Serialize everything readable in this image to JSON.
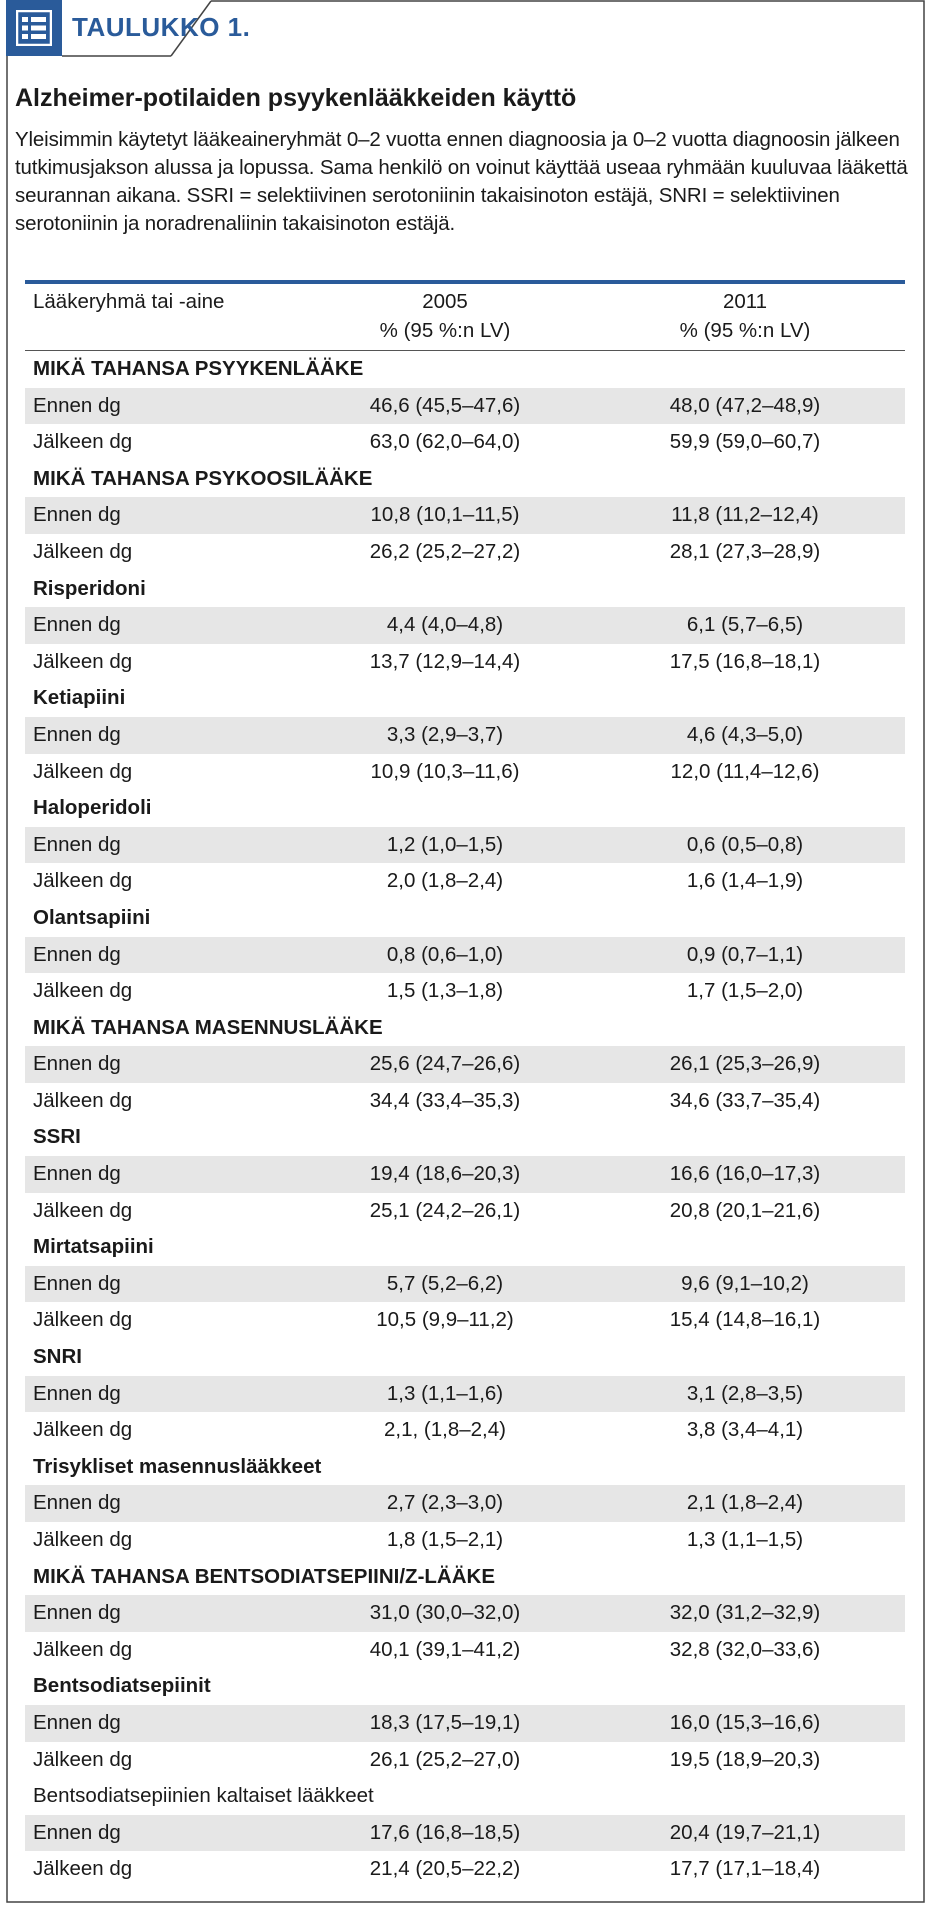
{
  "tag": {
    "icon": "table-list-icon",
    "label": "TAULUKKO 1."
  },
  "title": "Alzheimer-potilaiden psyykenlääkkeiden käyttö",
  "description": "Yleisimmin käytetyt lääkeaineryhmät 0–2 vuotta ennen diagnoosia ja 0–2 vuotta diagnoosin jälkeen tutkimusjakson alussa ja lopussa. Sama henkilö on voinut käyttää useaa ryhmään kuuluvaa lääkettä seurannan aikana. SSRI = selektiivinen serotoniinin takaisinoton estäjä, SNRI = selektiivinen serotoniinin ja noradrenaliinin takaisinoton estäjä.",
  "colors": {
    "accent": "#2a5b9a",
    "shade": "#e6e6e6"
  },
  "table": {
    "header": {
      "col1": "Lääkeryhmä tai -aine",
      "col2_year": "2005",
      "col2_unit": "% (95 %:n LV)",
      "col3_year": "2011",
      "col3_unit": "% (95 %:n LV)"
    },
    "rows": [
      {
        "label": "MIKÄ TAHANSA PSYYKENLÄÄKE",
        "v2005": "",
        "v2011": "",
        "type": "group",
        "shade": false
      },
      {
        "label": "Ennen dg",
        "v2005": "46,6 (45,5–47,6)",
        "v2011": "48,0 (47,2–48,9)",
        "type": "data",
        "shade": true
      },
      {
        "label": "Jälkeen dg",
        "v2005": "63,0 (62,0–64,0)",
        "v2011": "59,9 (59,0–60,7)",
        "type": "data",
        "shade": false
      },
      {
        "label": "MIKÄ TAHANSA PSYKOOSILÄÄKE",
        "v2005": "",
        "v2011": "",
        "type": "group",
        "shade": false
      },
      {
        "label": "Ennen dg",
        "v2005": "10,8 (10,1–11,5)",
        "v2011": "11,8 (11,2–12,4)",
        "type": "data",
        "shade": true
      },
      {
        "label": "Jälkeen dg",
        "v2005": "26,2 (25,2–27,2)",
        "v2011": "28,1 (27,3–28,9)",
        "type": "data",
        "shade": false
      },
      {
        "label": "Risperidoni",
        "v2005": "",
        "v2011": "",
        "type": "group",
        "shade": false
      },
      {
        "label": "Ennen dg",
        "v2005": "4,4 (4,0–4,8)",
        "v2011": "6,1 (5,7–6,5)",
        "type": "data",
        "shade": true
      },
      {
        "label": "Jälkeen dg",
        "v2005": "13,7 (12,9–14,4)",
        "v2011": "17,5 (16,8–18,1)",
        "type": "data",
        "shade": false
      },
      {
        "label": "Ketiapiini",
        "v2005": "",
        "v2011": "",
        "type": "group",
        "shade": false
      },
      {
        "label": "Ennen dg",
        "v2005": "3,3 (2,9–3,7)",
        "v2011": "4,6 (4,3–5,0)",
        "type": "data",
        "shade": true
      },
      {
        "label": "Jälkeen dg",
        "v2005": "10,9 (10,3–11,6)",
        "v2011": "12,0 (11,4–12,6)",
        "type": "data",
        "shade": false
      },
      {
        "label": "Haloperidoli",
        "v2005": "",
        "v2011": "",
        "type": "group",
        "shade": false
      },
      {
        "label": "Ennen dg",
        "v2005": "1,2 (1,0–1,5)",
        "v2011": "0,6 (0,5–0,8)",
        "type": "data",
        "shade": true
      },
      {
        "label": "Jälkeen dg",
        "v2005": "2,0 (1,8–2,4)",
        "v2011": "1,6 (1,4–1,9)",
        "type": "data",
        "shade": false
      },
      {
        "label": "Olantsapiini",
        "v2005": "",
        "v2011": "",
        "type": "group",
        "shade": false
      },
      {
        "label": "Ennen dg",
        "v2005": "0,8 (0,6–1,0)",
        "v2011": "0,9 (0,7–1,1)",
        "type": "data",
        "shade": true
      },
      {
        "label": "Jälkeen dg",
        "v2005": "1,5 (1,3–1,8)",
        "v2011": "1,7 (1,5–2,0)",
        "type": "data",
        "shade": false
      },
      {
        "label": "MIKÄ TAHANSA MASENNUSLÄÄKE",
        "v2005": "",
        "v2011": "",
        "type": "group",
        "shade": false
      },
      {
        "label": "Ennen dg",
        "v2005": "25,6 (24,7–26,6)",
        "v2011": "26,1 (25,3–26,9)",
        "type": "data",
        "shade": true
      },
      {
        "label": "Jälkeen dg",
        "v2005": "34,4 (33,4–35,3)",
        "v2011": "34,6 (33,7–35,4)",
        "type": "data",
        "shade": false
      },
      {
        "label": "SSRI",
        "v2005": "",
        "v2011": "",
        "type": "group",
        "shade": false
      },
      {
        "label": "Ennen dg",
        "v2005": "19,4 (18,6–20,3)",
        "v2011": "16,6 (16,0–17,3)",
        "type": "data",
        "shade": true
      },
      {
        "label": "Jälkeen dg",
        "v2005": "25,1 (24,2–26,1)",
        "v2011": "20,8 (20,1–21,6)",
        "type": "data",
        "shade": false
      },
      {
        "label": "Mirtatsapiini",
        "v2005": "",
        "v2011": "",
        "type": "group",
        "shade": false
      },
      {
        "label": "Ennen dg",
        "v2005": "5,7 (5,2–6,2)",
        "v2011": "9,6 (9,1–10,2)",
        "type": "data",
        "shade": true
      },
      {
        "label": "Jälkeen dg",
        "v2005": "10,5 (9,9–11,2)",
        "v2011": "15,4 (14,8–16,1)",
        "type": "data",
        "shade": false
      },
      {
        "label": "SNRI",
        "v2005": "",
        "v2011": "",
        "type": "group",
        "shade": false
      },
      {
        "label": "Ennen dg",
        "v2005": "1,3 (1,1–1,6)",
        "v2011": "3,1 (2,8–3,5)",
        "type": "data",
        "shade": true
      },
      {
        "label": "Jälkeen dg",
        "v2005": "2,1, (1,8–2,4)",
        "v2011": "3,8 (3,4–4,1)",
        "type": "data",
        "shade": false
      },
      {
        "label": "Trisykliset masennuslääkkeet",
        "v2005": "",
        "v2011": "",
        "type": "group",
        "shade": false
      },
      {
        "label": "Ennen dg",
        "v2005": "2,7 (2,3–3,0)",
        "v2011": "2,1 (1,8–2,4)",
        "type": "data",
        "shade": true
      },
      {
        "label": "Jälkeen dg",
        "v2005": "1,8 (1,5–2,1)",
        "v2011": "1,3 (1,1–1,5)",
        "type": "data",
        "shade": false
      },
      {
        "label": "MIKÄ TAHANSA BENTSODIATSEPIINI/Z-LÄÄKE",
        "v2005": "",
        "v2011": "",
        "type": "group",
        "shade": false
      },
      {
        "label": "Ennen dg",
        "v2005": "31,0 (30,0–32,0)",
        "v2011": "32,0 (31,2–32,9)",
        "type": "data",
        "shade": true
      },
      {
        "label": "Jälkeen dg",
        "v2005": "40,1 (39,1–41,2)",
        "v2011": "32,8 (32,0–33,6)",
        "type": "data",
        "shade": false
      },
      {
        "label": "Bentsodiatsepiinit",
        "v2005": "",
        "v2011": "",
        "type": "group",
        "shade": false
      },
      {
        "label": "Ennen dg",
        "v2005": "18,3 (17,5–19,1)",
        "v2011": "16,0 (15,3–16,6)",
        "type": "data",
        "shade": true
      },
      {
        "label": "Jälkeen dg",
        "v2005": "26,1 (25,2–27,0)",
        "v2011": "19,5 (18,9–20,3)",
        "type": "data",
        "shade": false
      },
      {
        "label": "Bentsodiatsepiinien kaltaiset lääkkeet",
        "v2005": "",
        "v2011": "",
        "type": "plain",
        "shade": false
      },
      {
        "label": "Ennen dg",
        "v2005": "17,6 (16,8–18,5)",
        "v2011": "20,4 (19,7–21,1)",
        "type": "data",
        "shade": true
      },
      {
        "label": "Jälkeen dg",
        "v2005": "21,4 (20,5–22,2)",
        "v2011": "17,7 (17,1–18,4)",
        "type": "data",
        "shade": false
      }
    ]
  }
}
